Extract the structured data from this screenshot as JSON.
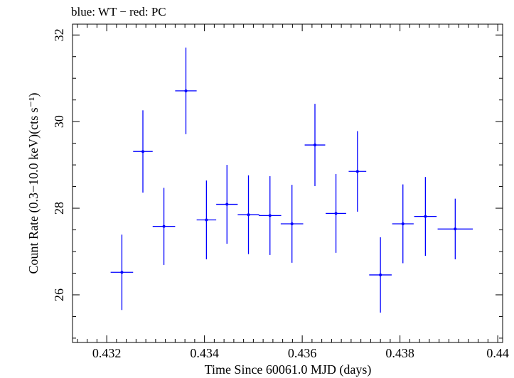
{
  "chart_data": {
    "type": "scatter",
    "title": "blue: WT − red: PC",
    "xlabel": "Time Since 60061.0 MJD (days)",
    "ylabel": "Count Rate (0.3−10.0 keV)(cts s⁻¹)",
    "xlim": [
      0.4313,
      0.4401
    ],
    "ylim": [
      24.9,
      32.25
    ],
    "x_ticks": [
      0.432,
      0.434,
      0.436,
      0.438,
      0.44
    ],
    "x_tick_labels": [
      "0.432",
      "0.434",
      "0.436",
      "0.438",
      "0.44"
    ],
    "y_ticks": [
      26,
      28,
      30,
      32
    ],
    "y_tick_labels": [
      "26",
      "28",
      "30",
      "32"
    ],
    "grid": false,
    "series": [
      {
        "color": "#0000ff",
        "points": [
          {
            "x": 0.43231,
            "xerr": 0.00023,
            "y": 26.52,
            "yerr": 0.87
          },
          {
            "x": 0.43274,
            "xerr": 0.0002,
            "y": 29.31,
            "yerr": 0.95
          },
          {
            "x": 0.43317,
            "xerr": 0.00023,
            "y": 27.58,
            "yerr": 0.89
          },
          {
            "x": 0.43362,
            "xerr": 0.00022,
            "y": 30.71,
            "yerr": 1.0
          },
          {
            "x": 0.43404,
            "xerr": 0.0002,
            "y": 27.73,
            "yerr": 0.91
          },
          {
            "x": 0.43446,
            "xerr": 0.00022,
            "y": 28.09,
            "yerr": 0.91
          },
          {
            "x": 0.4349,
            "xerr": 0.00022,
            "y": 27.85,
            "yerr": 0.91
          },
          {
            "x": 0.43534,
            "xerr": 0.00023,
            "y": 27.83,
            "yerr": 0.91
          },
          {
            "x": 0.43579,
            "xerr": 0.00023,
            "y": 27.64,
            "yerr": 0.9
          },
          {
            "x": 0.43626,
            "xerr": 0.00021,
            "y": 29.46,
            "yerr": 0.95
          },
          {
            "x": 0.43669,
            "xerr": 0.00021,
            "y": 27.88,
            "yerr": 0.91
          },
          {
            "x": 0.43713,
            "xerr": 0.00018,
            "y": 28.85,
            "yerr": 0.93
          },
          {
            "x": 0.4376,
            "xerr": 0.00023,
            "y": 26.46,
            "yerr": 0.87
          },
          {
            "x": 0.43806,
            "xerr": 0.00022,
            "y": 27.64,
            "yerr": 0.91
          },
          {
            "x": 0.43852,
            "xerr": 0.00023,
            "y": 27.81,
            "yerr": 0.91
          },
          {
            "x": 0.43913,
            "xerr": 0.00036,
            "y": 27.52,
            "yerr": 0.7
          }
        ]
      }
    ]
  }
}
